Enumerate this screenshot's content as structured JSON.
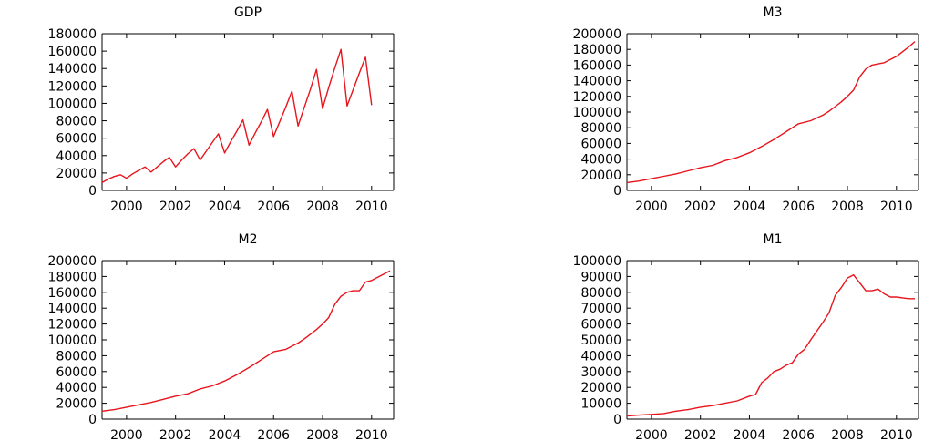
{
  "colors": {
    "line": "#e8141c",
    "axis": "#000000",
    "background": "#ffffff"
  },
  "chart_data": [
    {
      "type": "line",
      "title": "GDP",
      "xlabel": "",
      "ylabel": "",
      "xlim": [
        1999,
        2010.9
      ],
      "ylim": [
        0,
        180000
      ],
      "yticks": [
        0,
        20000,
        40000,
        60000,
        80000,
        100000,
        120000,
        140000,
        160000,
        180000
      ],
      "yticklabels": [
        "0",
        "20000",
        "40000",
        "60000",
        "80000",
        "100000",
        "120000",
        "140000",
        "160000",
        "180000"
      ],
      "xticks": [
        2000,
        2002,
        2004,
        2006,
        2008,
        2010
      ],
      "xticklabels": [
        "2000",
        "2002",
        "2004",
        "2006",
        "2008",
        "2010"
      ],
      "grid": false,
      "series": [
        {
          "x": [
            1999.0,
            1999.25,
            1999.5,
            1999.75,
            2000.0,
            2000.25,
            2000.5,
            2000.75,
            2001.0,
            2001.25,
            2001.5,
            2001.75,
            2002.0,
            2002.25,
            2002.5,
            2002.75,
            2003.0,
            2003.25,
            2003.5,
            2003.75,
            2004.0,
            2004.25,
            2004.5,
            2004.75,
            2005.0,
            2005.25,
            2005.5,
            2005.75,
            2006.0,
            2006.25,
            2006.5,
            2006.75,
            2007.0,
            2007.25,
            2007.5,
            2007.75,
            2008.0,
            2008.25,
            2008.5,
            2008.75,
            2009.0,
            2009.25,
            2009.5,
            2009.75,
            2010.0
          ],
          "y": [
            9000,
            13000,
            16000,
            18000,
            14000,
            19000,
            23000,
            27000,
            21000,
            27000,
            33000,
            38000,
            27000,
            35000,
            42000,
            48000,
            35000,
            45000,
            55000,
            65000,
            43000,
            56000,
            68000,
            81000,
            52000,
            66000,
            79000,
            93000,
            62000,
            79000,
            96000,
            114000,
            74000,
            95000,
            116000,
            139000,
            94000,
            118000,
            141000,
            162000,
            97000,
            116000,
            135000,
            153000,
            98000
          ]
        }
      ]
    },
    {
      "type": "line",
      "title": "M3",
      "xlabel": "",
      "ylabel": "",
      "xlim": [
        1999,
        2010.9
      ],
      "ylim": [
        0,
        200000
      ],
      "yticks": [
        0,
        20000,
        40000,
        60000,
        80000,
        100000,
        120000,
        140000,
        160000,
        180000,
        200000
      ],
      "yticklabels": [
        "0",
        "20000",
        "40000",
        "60000",
        "80000",
        "100000",
        "120000",
        "140000",
        "160000",
        "180000",
        "200000"
      ],
      "xticks": [
        2000,
        2002,
        2004,
        2006,
        2008,
        2010
      ],
      "xticklabels": [
        "2000",
        "2002",
        "2004",
        "2006",
        "2008",
        "2010"
      ],
      "grid": false,
      "series": [
        {
          "x": [
            1999.0,
            1999.5,
            2000.0,
            2000.5,
            2001.0,
            2001.5,
            2002.0,
            2002.5,
            2003.0,
            2003.5,
            2004.0,
            2004.5,
            2005.0,
            2005.25,
            2005.5,
            2005.75,
            2006.0,
            2006.5,
            2007.0,
            2007.25,
            2007.5,
            2007.75,
            2008.0,
            2008.25,
            2008.5,
            2008.75,
            2009.0,
            2009.5,
            2010.0,
            2010.5,
            2010.75
          ],
          "y": [
            10000,
            12000,
            15000,
            18000,
            21000,
            25000,
            29000,
            32000,
            38000,
            42000,
            48000,
            56000,
            65000,
            70000,
            75000,
            80000,
            85000,
            89000,
            96000,
            101000,
            107000,
            113000,
            120000,
            128000,
            145000,
            155000,
            160000,
            163000,
            171000,
            183000,
            190000
          ]
        }
      ]
    },
    {
      "type": "line",
      "title": "M2",
      "xlabel": "",
      "ylabel": "",
      "xlim": [
        1999,
        2010.9
      ],
      "ylim": [
        0,
        200000
      ],
      "yticks": [
        0,
        20000,
        40000,
        60000,
        80000,
        100000,
        120000,
        140000,
        160000,
        180000,
        200000
      ],
      "yticklabels": [
        "0",
        "20000",
        "40000",
        "60000",
        "80000",
        "100000",
        "120000",
        "140000",
        "160000",
        "180000",
        "200000"
      ],
      "xticks": [
        2000,
        2002,
        2004,
        2006,
        2008,
        2010
      ],
      "xticklabels": [
        "2000",
        "2002",
        "2004",
        "2006",
        "2008",
        "2010"
      ],
      "grid": false,
      "series": [
        {
          "x": [
            1999.0,
            1999.5,
            2000.0,
            2000.5,
            2001.0,
            2001.5,
            2002.0,
            2002.5,
            2003.0,
            2003.5,
            2004.0,
            2004.5,
            2005.0,
            2005.25,
            2005.5,
            2005.75,
            2006.0,
            2006.5,
            2007.0,
            2007.25,
            2007.5,
            2007.75,
            2008.0,
            2008.25,
            2008.5,
            2008.75,
            2009.0,
            2009.25,
            2009.5,
            2009.75,
            2010.0,
            2010.5,
            2010.75
          ],
          "y": [
            10000,
            12000,
            15000,
            18000,
            21000,
            25000,
            29000,
            32000,
            38000,
            42000,
            48000,
            56000,
            65000,
            70000,
            75000,
            80000,
            85000,
            88000,
            96000,
            101000,
            107000,
            113000,
            120000,
            128000,
            145000,
            155000,
            160000,
            162000,
            162000,
            173000,
            175000,
            183000,
            187000
          ]
        }
      ]
    },
    {
      "type": "line",
      "title": "M1",
      "xlabel": "",
      "ylabel": "",
      "xlim": [
        1999,
        2010.9
      ],
      "ylim": [
        0,
        100000
      ],
      "yticks": [
        0,
        10000,
        20000,
        30000,
        40000,
        50000,
        60000,
        70000,
        80000,
        90000,
        100000
      ],
      "yticklabels": [
        "0",
        "10000",
        "20000",
        "30000",
        "40000",
        "50000",
        "60000",
        "70000",
        "80000",
        "90000",
        "100000"
      ],
      "xticks": [
        2000,
        2002,
        2004,
        2006,
        2008,
        2010
      ],
      "xticklabels": [
        "2000",
        "2002",
        "2004",
        "2006",
        "2008",
        "2010"
      ],
      "grid": false,
      "series": [
        {
          "x": [
            1999.0,
            1999.5,
            2000.0,
            2000.5,
            2001.0,
            2001.5,
            2002.0,
            2002.5,
            2003.0,
            2003.5,
            2004.0,
            2004.25,
            2004.5,
            2004.75,
            2005.0,
            2005.25,
            2005.5,
            2005.75,
            2006.0,
            2006.25,
            2006.5,
            2006.75,
            2007.0,
            2007.25,
            2007.5,
            2007.75,
            2008.0,
            2008.25,
            2008.5,
            2008.75,
            2009.0,
            2009.25,
            2009.5,
            2009.75,
            2010.0,
            2010.25,
            2010.5,
            2010.75
          ],
          "y": [
            2000,
            2500,
            3000,
            3500,
            5000,
            6000,
            7500,
            8500,
            10000,
            11500,
            14500,
            15500,
            23000,
            26000,
            30000,
            31500,
            34000,
            35500,
            41000,
            44000,
            50000,
            55500,
            61000,
            67000,
            78000,
            83000,
            89000,
            91000,
            86000,
            81000,
            81000,
            82000,
            79000,
            77000,
            77000,
            76500,
            76000,
            76000
          ]
        }
      ]
    }
  ]
}
